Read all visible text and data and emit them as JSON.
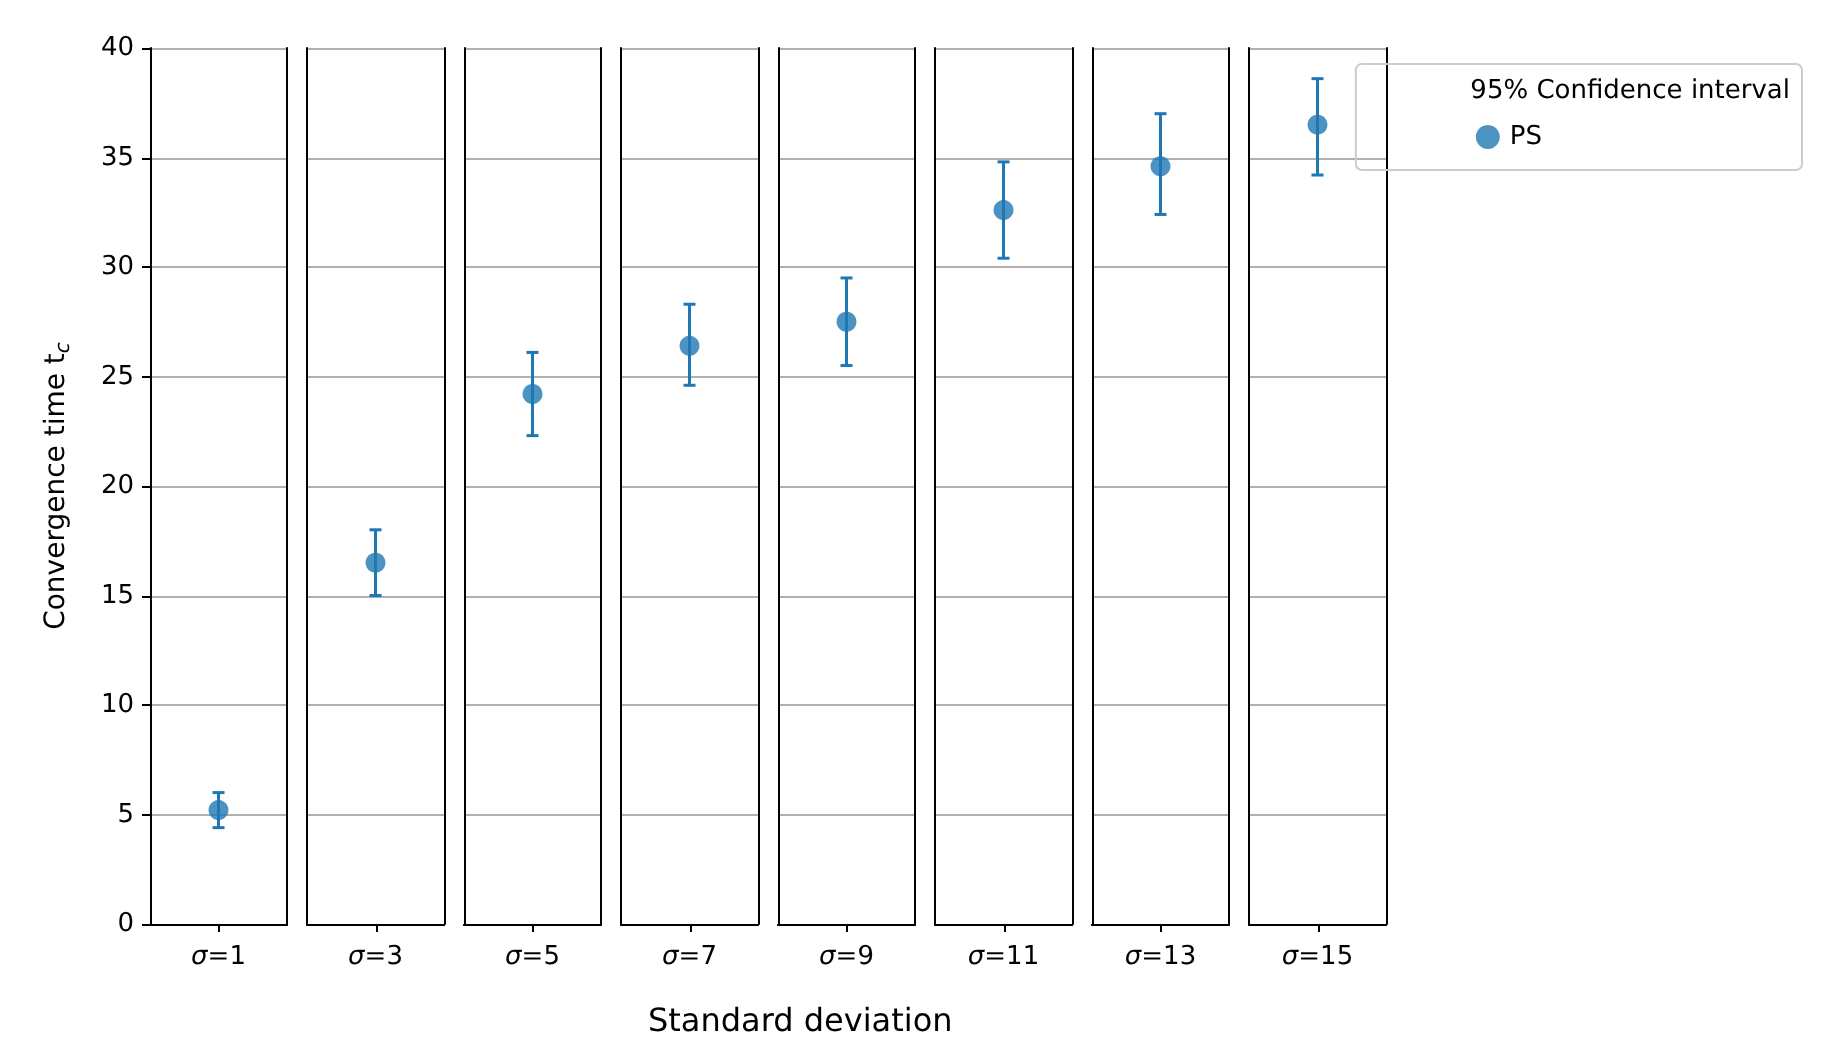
{
  "chart_data": {
    "type": "scatter",
    "xlabel": "Standard deviation",
    "ylabel": "Convergence time t$_{c}$",
    "legend_title": "95% Confidence interval",
    "categories": [
      "σ=1",
      "σ=3",
      "σ=5",
      "σ=7",
      "σ=9",
      "σ=11",
      "σ=13",
      "σ=15"
    ],
    "series": [
      {
        "name": "PS",
        "color": "#1f77b4",
        "values": [
          5.2,
          16.5,
          24.2,
          26.4,
          27.5,
          32.6,
          34.6,
          36.5
        ],
        "errors": [
          [
            4.4,
            6.0
          ],
          [
            15.0,
            18.0
          ],
          [
            22.3,
            26.1
          ],
          [
            24.6,
            28.3
          ],
          [
            25.5,
            29.5
          ],
          [
            30.4,
            34.8
          ],
          [
            32.4,
            37.0
          ],
          [
            34.2,
            38.6
          ]
        ]
      }
    ],
    "ylim": [
      0,
      40
    ],
    "yticks": [
      0,
      5,
      10,
      15,
      20,
      25,
      30,
      35,
      40
    ],
    "grid": "y",
    "legend": "top right",
    "marker": "circle"
  }
}
